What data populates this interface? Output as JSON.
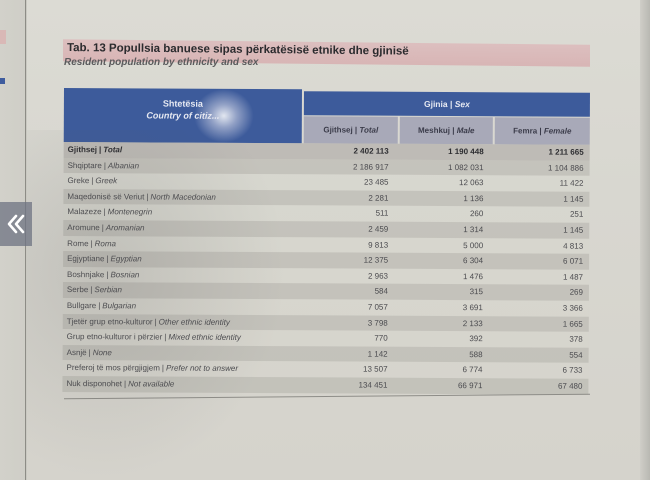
{
  "table": {
    "title": "Tab. 13 Popullsia banuese sipas përkatësisë etnike dhe gjinisë",
    "subtitle": "Resident population by ethnicity and sex",
    "header": {
      "country_sq": "Shtetësia",
      "country_en": "Country of citiz...",
      "sex_sq": "Gjinia",
      "sex_en": "Sex",
      "columns": [
        {
          "sq": "Gjithsej",
          "en": "Total"
        },
        {
          "sq": "Meshkuj",
          "en": "Male"
        },
        {
          "sq": "Femra",
          "en": "Female"
        }
      ]
    },
    "rows": [
      {
        "sq": "Gjithsej",
        "en": "Total",
        "total": "2 402 113",
        "male": "1 190 448",
        "female": "1 211 665"
      },
      {
        "sq": "Shqiptare",
        "en": "Albanian",
        "total": "2 186 917",
        "male": "1 082 031",
        "female": "1 104 886"
      },
      {
        "sq": "Greke",
        "en": "Greek",
        "total": "23 485",
        "male": "12 063",
        "female": "11 422"
      },
      {
        "sq": "Maqedonisë së Veriut",
        "en": "North Macedonian",
        "total": "2 281",
        "male": "1 136",
        "female": "1 145"
      },
      {
        "sq": "Malazeze",
        "en": "Montenegrin",
        "total": "511",
        "male": "260",
        "female": "251"
      },
      {
        "sq": "Aromune",
        "en": "Aromanian",
        "total": "2 459",
        "male": "1 314",
        "female": "1 145"
      },
      {
        "sq": "Rome",
        "en": "Roma",
        "total": "9 813",
        "male": "5 000",
        "female": "4 813"
      },
      {
        "sq": "Egjyptiane",
        "en": "Egyptian",
        "total": "12 375",
        "male": "6 304",
        "female": "6 071"
      },
      {
        "sq": "Boshnjake",
        "en": "Bosnian",
        "total": "2 963",
        "male": "1 476",
        "female": "1 487"
      },
      {
        "sq": "Serbe",
        "en": "Serbian",
        "total": "584",
        "male": "315",
        "female": "269"
      },
      {
        "sq": "Bullgare",
        "en": "Bulgarian",
        "total": "7 057",
        "male": "3 691",
        "female": "3 366"
      },
      {
        "sq": "Tjetër grup etno-kulturor",
        "en": "Other ethnic identity",
        "total": "3 798",
        "male": "2 133",
        "female": "1 665"
      },
      {
        "sq": "Grup etno-kulturor i përzier",
        "en": "Mixed ethnic identity",
        "total": "770",
        "male": "392",
        "female": "378"
      },
      {
        "sq": "Asnjë",
        "en": "None",
        "total": "1 142",
        "male": "588",
        "female": "554"
      },
      {
        "sq": "Preferoj të mos përgjigjem",
        "en": "Prefer not to answer",
        "total": "13 507",
        "male": "6 774",
        "female": "6 733"
      },
      {
        "sq": "Nuk disponohet",
        "en": "Not available",
        "total": "134 451",
        "male": "66 971",
        "female": "67 480"
      }
    ]
  },
  "nav": {
    "prev_icon": "double-chevron-left-icon"
  },
  "colors": {
    "header_blue": "#3d5b9b",
    "subheader_gray": "#a8a9b8",
    "title_band": "#d8b5b5",
    "paper": "#dcdbd4"
  }
}
